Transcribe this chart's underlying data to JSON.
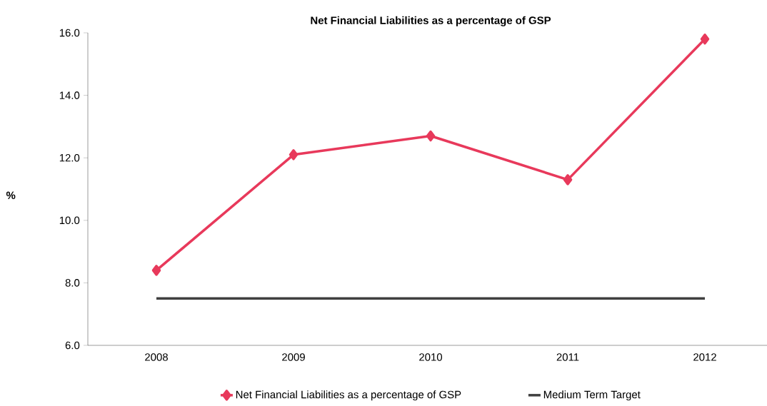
{
  "chart_data": {
    "type": "line",
    "title": "Net Financial Liabilities as a percentage of GSP",
    "ylabel": "%",
    "categories": [
      "2008",
      "2009",
      "2010",
      "2011",
      "2012"
    ],
    "series": [
      {
        "name": "Net Financial Liabilities as a percentage of GSP",
        "color": "#e8395b",
        "values": [
          8.4,
          12.1,
          12.7,
          11.3,
          15.8
        ],
        "marker": "diamond"
      },
      {
        "name": "Medium Term Target",
        "color": "#404040",
        "values": [
          7.5,
          7.5,
          7.5,
          7.5,
          7.5
        ],
        "marker": "none"
      }
    ],
    "ylim": [
      6,
      16
    ],
    "yticks": [
      {
        "value": 6,
        "label": "6.0"
      },
      {
        "value": 8,
        "label": "8.0"
      },
      {
        "value": 10,
        "label": "10.0"
      },
      {
        "value": 12,
        "label": "12.0"
      },
      {
        "value": 14,
        "label": "14.0"
      },
      {
        "value": 16,
        "label": "16.0"
      }
    ],
    "legend": "bottom",
    "grid": false
  }
}
